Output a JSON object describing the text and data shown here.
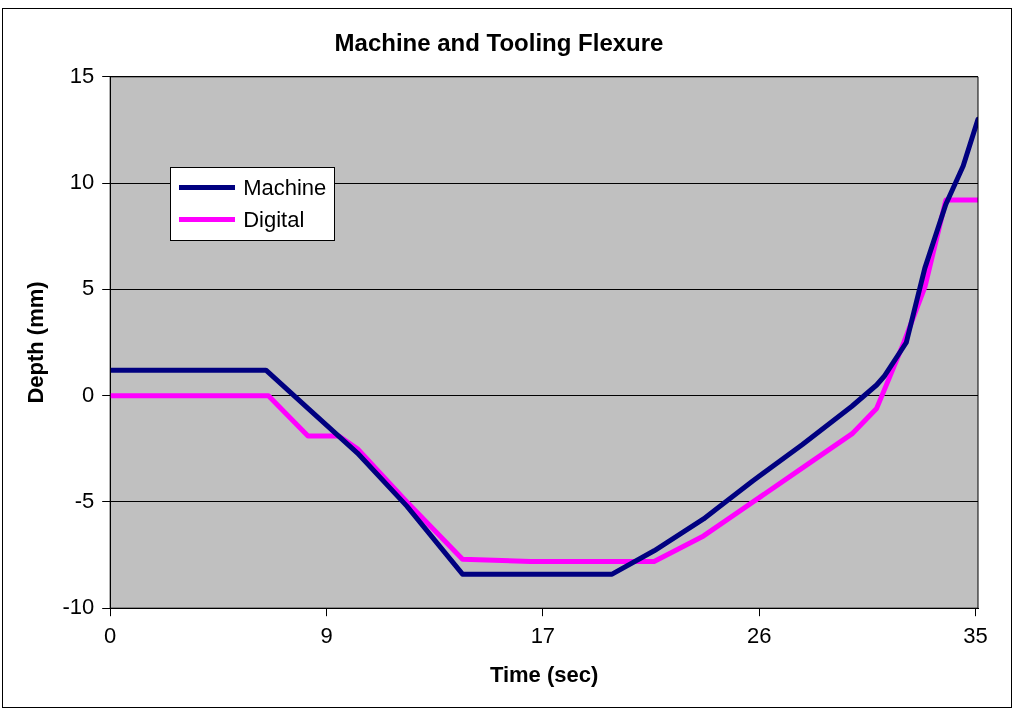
{
  "chart_data": {
    "type": "line",
    "title": "Machine and Tooling Flexure",
    "xlabel": "Time (sec)",
    "ylabel": "Depth (mm)",
    "xlim": [
      0,
      35.1
    ],
    "xticks": [
      0,
      {
        "value": 8.75,
        "label": "9"
      },
      {
        "value": 17.5,
        "label": "17"
      },
      {
        "value": 26.25,
        "label": "26"
      },
      35
    ],
    "ylim": [
      -10,
      15
    ],
    "yticks": [
      -10,
      -5,
      0,
      5,
      10,
      15
    ],
    "grid": "y",
    "legend": "top left",
    "marker": "none",
    "line_style": "solid",
    "series": [
      {
        "name": "Machine",
        "color": "#000080",
        "x": [
          0,
          6.3,
          8,
          10,
          12,
          14.25,
          17,
          20.3,
          22,
          24,
          26,
          28,
          30,
          31,
          31.3,
          32.2,
          32.95,
          33.8,
          34.5,
          35.1
        ],
        "values": [
          1.2,
          1.2,
          -0.6,
          -2.7,
          -5.2,
          -8.4,
          -8.4,
          -8.4,
          -7.3,
          -5.8,
          -4,
          -2.3,
          -0.5,
          0.5,
          0.9,
          2.5,
          6,
          9,
          10.8,
          13
        ]
      },
      {
        "name": "Digital",
        "color": "#ff00ff",
        "x": [
          0,
          6.4,
          8,
          9.25,
          10,
          12,
          14.25,
          17,
          20,
          22,
          24,
          26,
          28,
          30,
          31,
          31.5,
          32.1,
          32.95,
          33.8,
          35.1
        ],
        "values": [
          0,
          0,
          -1.9,
          -1.9,
          -2.5,
          -5,
          -7.7,
          -7.8,
          -7.8,
          -7.8,
          -6.6,
          -5,
          -3.4,
          -1.8,
          -0.6,
          0.8,
          2.5,
          5.1,
          9.2,
          9.2
        ]
      }
    ]
  }
}
